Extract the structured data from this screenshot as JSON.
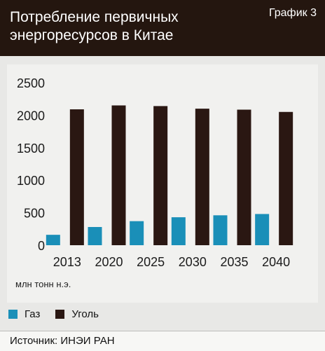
{
  "header": {
    "title": "Потребление первичных\nэнергоресурсов в Китае",
    "chart_number": "График 3"
  },
  "unit_label": "млн тонн н.э.",
  "source": "Источник: ИНЭИ РАН",
  "colors": {
    "header_bg": "#24160f",
    "gas": "#1a8fb8",
    "coal": "#2a1712",
    "background": "#e8e8e6"
  },
  "chart_data": {
    "type": "bar",
    "categories": [
      "2013",
      "2020",
      "2025",
      "2030",
      "2035",
      "2040"
    ],
    "series": [
      {
        "name": "Газ",
        "color": "#1a8fb8",
        "values": [
          160,
          280,
          370,
          430,
          460,
          480
        ]
      },
      {
        "name": "Уголь",
        "color": "#2a1712",
        "values": [
          2090,
          2150,
          2140,
          2100,
          2085,
          2050
        ]
      }
    ],
    "yticks": [
      "0",
      "500",
      "1000",
      "1500",
      "2000",
      "2500"
    ],
    "ylim": [
      0,
      2500
    ],
    "grid": false,
    "legend": "bottom-left"
  }
}
